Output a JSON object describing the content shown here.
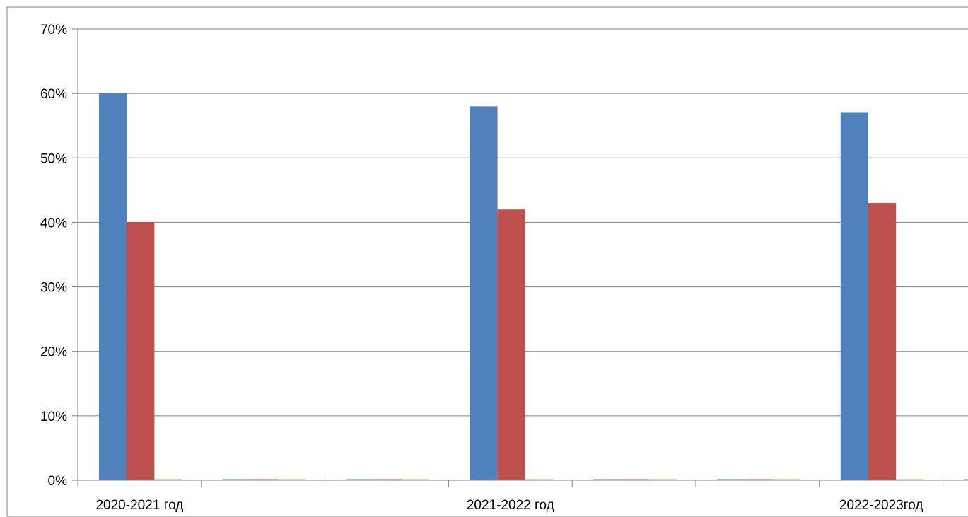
{
  "chart_data": {
    "type": "bar",
    "categories": [
      "2020-2021  год",
      "",
      "",
      "2021-2022 год",
      "",
      "",
      "2022-2023год",
      ""
    ],
    "series": [
      {
        "values": [
          0.6,
          0,
          0,
          0.58,
          0,
          0,
          0.57,
          0
        ],
        "color": "#4F81BD"
      },
      {
        "values": [
          0.4,
          0,
          0,
          0.42,
          0,
          0,
          0.43,
          0
        ],
        "color": "#C0504D"
      },
      {
        "values": [
          0,
          0,
          0,
          0,
          0,
          0,
          0,
          0
        ],
        "color": "#9BBB59"
      }
    ],
    "y_ticks": [
      "0%",
      "10%",
      "20%",
      "30%",
      "40%",
      "50%",
      "60%",
      "70%"
    ],
    "ylim": [
      0,
      0.7
    ],
    "grid": true,
    "legend": "none",
    "title": "",
    "xlabel": "",
    "ylabel": ""
  }
}
